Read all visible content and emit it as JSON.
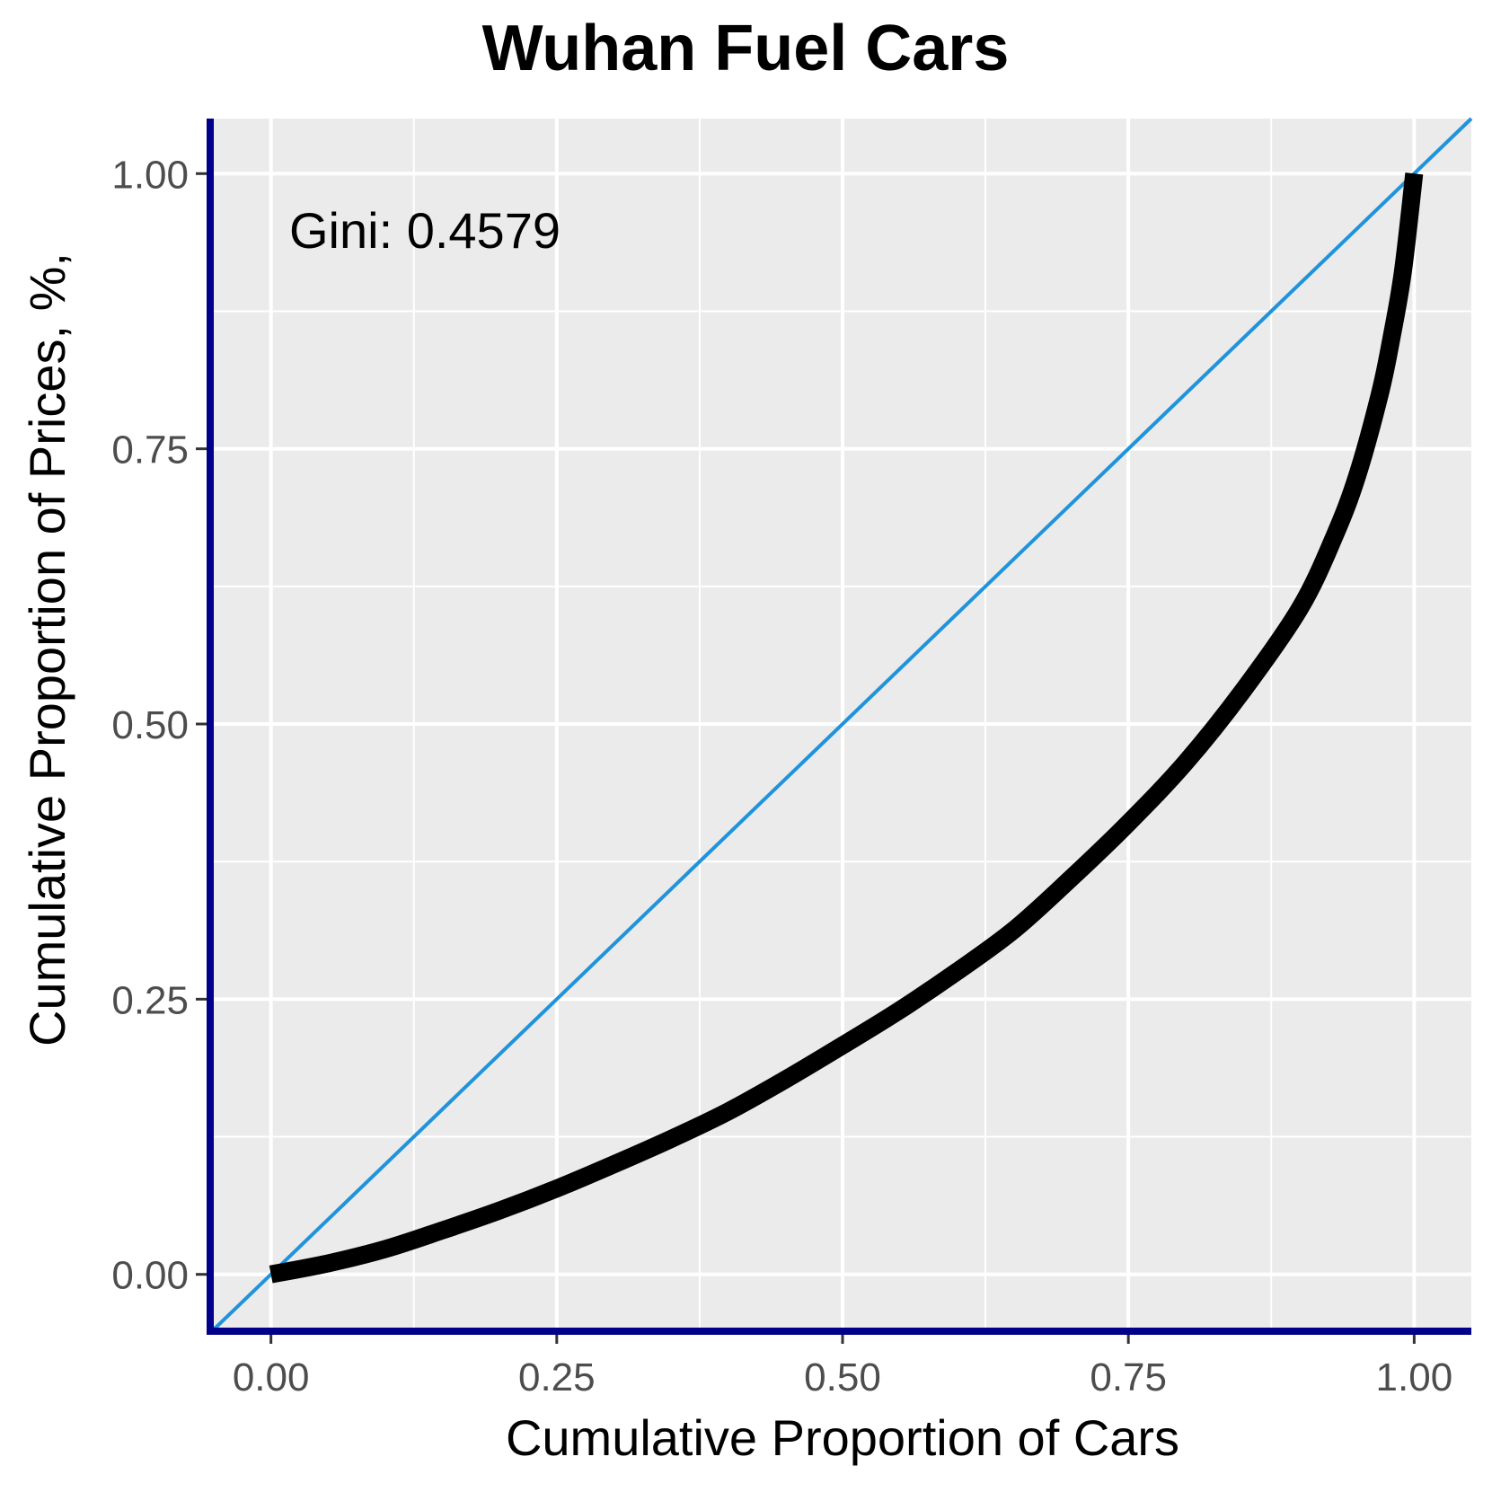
{
  "chart_data": {
    "type": "line",
    "title": "Wuhan Fuel Cars",
    "xlabel": "Cumulative Proportion of Cars",
    "ylabel": "Cumulative Proportion of Prices, %,",
    "xlim": [
      -0.05,
      1.05
    ],
    "ylim": [
      -0.05,
      1.05
    ],
    "x_ticks": [
      0.0,
      0.25,
      0.5,
      0.75,
      1.0
    ],
    "x_tick_labels": [
      "0.00",
      "0.25",
      "0.50",
      "0.75",
      "1.00"
    ],
    "y_ticks": [
      0.0,
      0.25,
      0.5,
      0.75,
      1.0
    ],
    "y_tick_labels": [
      "0.00",
      "0.25",
      "0.50",
      "0.75",
      "1.00"
    ],
    "grid": true,
    "annotation": "Gini: 0.4579",
    "series": [
      {
        "role": "lorenz-curve",
        "color": "#000000",
        "x": [
          0.0,
          0.05,
          0.1,
          0.15,
          0.2,
          0.25,
          0.3,
          0.35,
          0.4,
          0.45,
          0.5,
          0.55,
          0.6,
          0.65,
          0.7,
          0.75,
          0.8,
          0.85,
          0.9,
          0.93,
          0.95,
          0.97,
          0.98,
          0.99,
          1.0
        ],
        "y": [
          0.0,
          0.01,
          0.023,
          0.04,
          0.058,
          0.078,
          0.1,
          0.123,
          0.148,
          0.177,
          0.208,
          0.24,
          0.275,
          0.313,
          0.36,
          0.41,
          0.465,
          0.53,
          0.605,
          0.67,
          0.725,
          0.8,
          0.85,
          0.91,
          1.0
        ]
      },
      {
        "role": "equality-line",
        "color": "#1f93dc",
        "x": [
          -0.05,
          1.05
        ],
        "y": [
          -0.05,
          1.05
        ]
      }
    ],
    "colors": {
      "panel_background": "#ebebeb",
      "grid": "#ffffff",
      "axis_line": "#00008b",
      "tick_label": "#4d4d4d"
    }
  }
}
